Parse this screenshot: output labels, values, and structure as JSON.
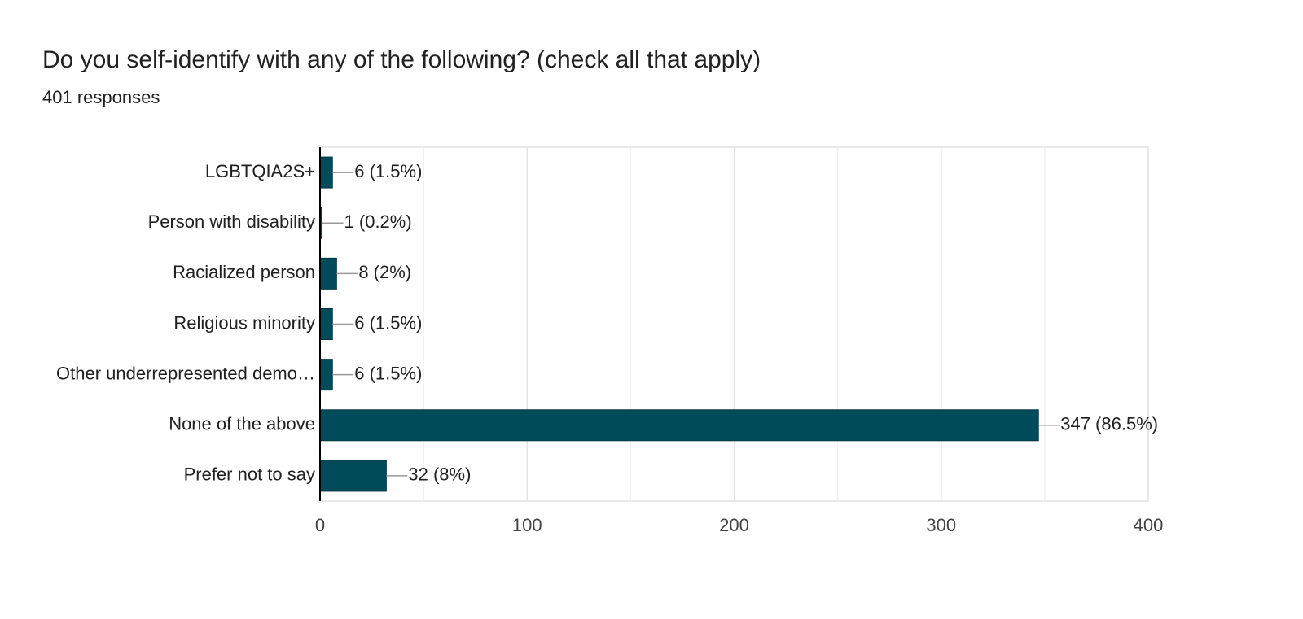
{
  "chart_data": {
    "type": "bar",
    "orientation": "horizontal",
    "title": "Do you self-identify with any of the following? (check all that apply)",
    "subtitle": "401 responses",
    "categories": [
      "LGBTQIA2S+",
      "Person with disability",
      "Racialized person",
      "Religious minority",
      "Other underrepresented demo…",
      "None of the above",
      "Prefer not to say"
    ],
    "values": [
      6,
      1,
      8,
      6,
      6,
      347,
      32
    ],
    "value_labels": [
      "6 (1.5%)",
      "1 (0.2%)",
      "8 (2%)",
      "6 (1.5%)",
      "6 (1.5%)",
      "347 (86.5%)",
      "32 (8%)"
    ],
    "color": "#004b5a",
    "xlim": [
      0,
      400
    ],
    "xticks": [
      0,
      100,
      200,
      300,
      400
    ],
    "xminorticks": [
      50,
      150,
      250,
      350
    ],
    "grid": true
  }
}
